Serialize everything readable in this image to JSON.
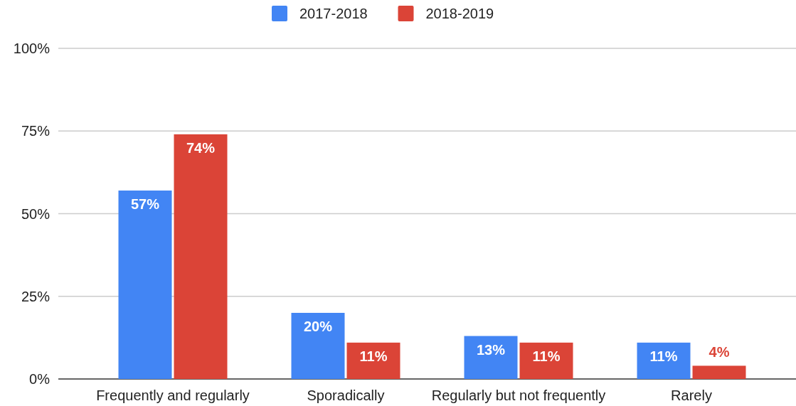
{
  "chart_data": {
    "type": "bar",
    "categories": [
      "Frequently and regularly",
      "Sporadically",
      "Regularly but not frequently",
      "Rarely"
    ],
    "series": [
      {
        "name": "2017-2018",
        "color": "#4285f4",
        "values": [
          57,
          20,
          13,
          11
        ],
        "value_labels": [
          "57%",
          "20%",
          "13%",
          "11%"
        ]
      },
      {
        "name": "2018-2019",
        "color": "#db4437",
        "values": [
          74,
          11,
          11,
          4
        ],
        "value_labels": [
          "74%",
          "11%",
          "11%",
          "4%"
        ]
      }
    ],
    "ylim": [
      0,
      100
    ],
    "yticks": [
      {
        "value": 0,
        "label": "0%"
      },
      {
        "value": 25,
        "label": "25%"
      },
      {
        "value": 50,
        "label": "50%"
      },
      {
        "value": 75,
        "label": "75%"
      },
      {
        "value": 100,
        "label": "100%"
      }
    ],
    "grid": "y",
    "legend": "top"
  }
}
